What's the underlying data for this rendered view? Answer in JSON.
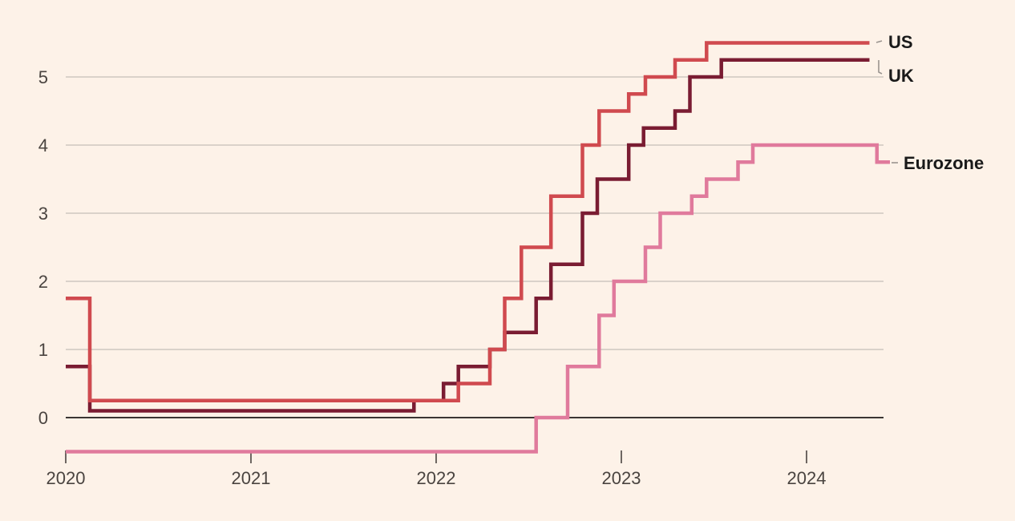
{
  "chart_data": {
    "type": "line",
    "step": true,
    "xlim": [
      2020.0,
      2024.45
    ],
    "ylim": [
      -0.5,
      5.5
    ],
    "yticks": [
      0,
      1,
      2,
      3,
      4,
      5
    ],
    "xticks": [
      2020,
      2021,
      2022,
      2023,
      2024
    ],
    "grid": true,
    "series": [
      {
        "name": "Eurozone",
        "color": "#E07A9C",
        "points": [
          [
            2020.0,
            -0.5
          ],
          [
            2022.54,
            -0.5
          ],
          [
            2022.54,
            0.0
          ],
          [
            2022.71,
            0.0
          ],
          [
            2022.71,
            0.75
          ],
          [
            2022.88,
            0.75
          ],
          [
            2022.88,
            1.5
          ],
          [
            2022.96,
            1.5
          ],
          [
            2022.96,
            2.0
          ],
          [
            2023.13,
            2.0
          ],
          [
            2023.13,
            2.5
          ],
          [
            2023.21,
            2.5
          ],
          [
            2023.21,
            3.0
          ],
          [
            2023.38,
            3.0
          ],
          [
            2023.38,
            3.25
          ],
          [
            2023.46,
            3.25
          ],
          [
            2023.46,
            3.5
          ],
          [
            2023.63,
            3.5
          ],
          [
            2023.63,
            3.75
          ],
          [
            2023.71,
            3.75
          ],
          [
            2023.71,
            4.0
          ],
          [
            2024.38,
            4.0
          ],
          [
            2024.38,
            3.75
          ],
          [
            2024.45,
            3.75
          ]
        ]
      },
      {
        "name": "UK",
        "color": "#7A1C32",
        "points": [
          [
            2020.0,
            0.75
          ],
          [
            2020.13,
            0.75
          ],
          [
            2020.13,
            0.1
          ],
          [
            2021.88,
            0.1
          ],
          [
            2021.88,
            0.25
          ],
          [
            2022.04,
            0.25
          ],
          [
            2022.04,
            0.5
          ],
          [
            2022.12,
            0.5
          ],
          [
            2022.12,
            0.75
          ],
          [
            2022.29,
            0.75
          ],
          [
            2022.29,
            1.0
          ],
          [
            2022.37,
            1.0
          ],
          [
            2022.37,
            1.25
          ],
          [
            2022.54,
            1.25
          ],
          [
            2022.54,
            1.75
          ],
          [
            2022.62,
            1.75
          ],
          [
            2022.62,
            2.25
          ],
          [
            2022.79,
            2.25
          ],
          [
            2022.79,
            3.0
          ],
          [
            2022.87,
            3.0
          ],
          [
            2022.87,
            3.5
          ],
          [
            2023.04,
            3.5
          ],
          [
            2023.04,
            4.0
          ],
          [
            2023.12,
            4.0
          ],
          [
            2023.12,
            4.25
          ],
          [
            2023.29,
            4.25
          ],
          [
            2023.29,
            4.5
          ],
          [
            2023.37,
            4.5
          ],
          [
            2023.37,
            5.0
          ],
          [
            2023.54,
            5.0
          ],
          [
            2023.54,
            5.25
          ],
          [
            2024.34,
            5.25
          ]
        ]
      },
      {
        "name": "US",
        "color": "#D04A4F",
        "points": [
          [
            2020.0,
            1.75
          ],
          [
            2020.13,
            1.75
          ],
          [
            2020.13,
            0.25
          ],
          [
            2022.12,
            0.25
          ],
          [
            2022.12,
            0.5
          ],
          [
            2022.29,
            0.5
          ],
          [
            2022.29,
            1.0
          ],
          [
            2022.37,
            1.0
          ],
          [
            2022.37,
            1.75
          ],
          [
            2022.46,
            1.75
          ],
          [
            2022.46,
            2.5
          ],
          [
            2022.62,
            2.5
          ],
          [
            2022.62,
            3.25
          ],
          [
            2022.79,
            3.25
          ],
          [
            2022.79,
            4.0
          ],
          [
            2022.88,
            4.0
          ],
          [
            2022.88,
            4.5
          ],
          [
            2023.04,
            4.5
          ],
          [
            2023.04,
            4.75
          ],
          [
            2023.13,
            4.75
          ],
          [
            2023.13,
            5.0
          ],
          [
            2023.29,
            5.0
          ],
          [
            2023.29,
            5.25
          ],
          [
            2023.46,
            5.25
          ],
          [
            2023.46,
            5.5
          ],
          [
            2024.34,
            5.5
          ]
        ]
      }
    ],
    "labels": {
      "US": "US",
      "UK": "UK",
      "Eurozone": "Eurozone"
    }
  }
}
